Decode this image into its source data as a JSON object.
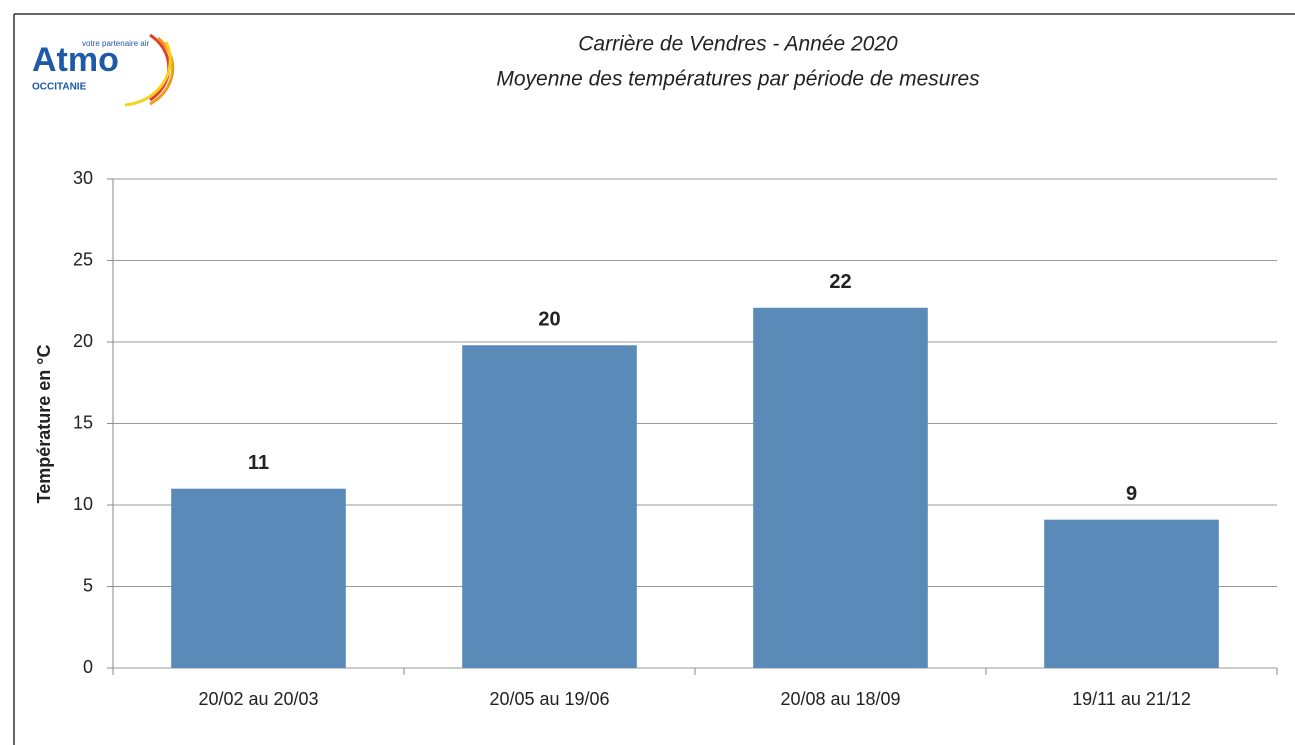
{
  "logo": {
    "name": "Atmo",
    "tagline": "votre partenaire air",
    "region": "OCCITANIE"
  },
  "chart_data": {
    "type": "bar",
    "title": "Carrière de Vendres - Année 2020",
    "subtitle": "Moyenne des températures par période de mesures",
    "y_label": "Température en °C",
    "categories": [
      "20/02 au 20/03",
      "20/05 au 19/06",
      "20/08 au 18/09",
      "19/11 au 21/12"
    ],
    "values": [
      11,
      19.8,
      22.1,
      9.1
    ],
    "value_labels": [
      "11",
      "20",
      "22",
      "9"
    ],
    "color": "#5a8bb8",
    "ylim": [
      0,
      30
    ],
    "yticks": [
      0,
      5,
      10,
      15,
      20,
      25,
      30
    ],
    "grid": true
  }
}
